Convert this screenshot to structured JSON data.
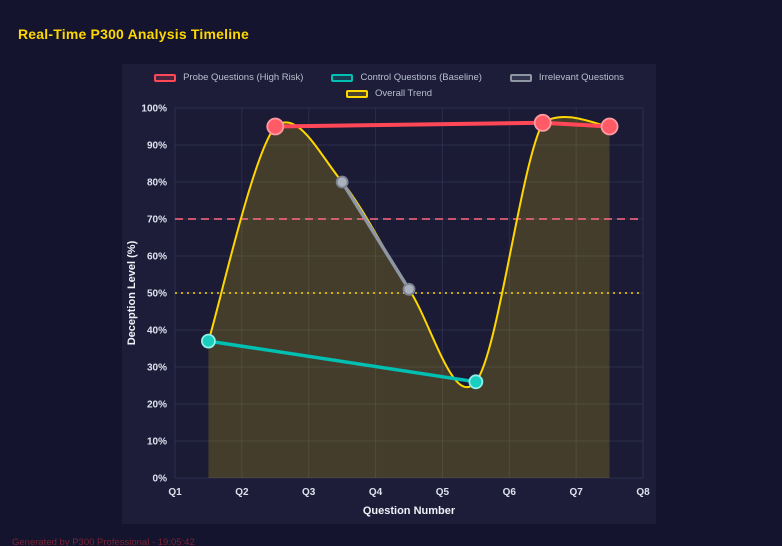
{
  "page": {
    "title": "Real-Time P300 Analysis Timeline",
    "footer": "Generated by P300 Professional - 19:05:42",
    "background": "#14142e",
    "panel_background": "#1d1d3a",
    "title_color": "#ffd700",
    "footer_color": "#7d2230"
  },
  "chart_data": {
    "type": "line",
    "title": "Real-Time P300 Analysis Timeline",
    "xlabel": "Question Number",
    "ylabel": "Deception Level (%)",
    "x_tick_labels": [
      "Q1",
      "Q2",
      "Q3",
      "Q4",
      "Q5",
      "Q6",
      "Q7",
      "Q8"
    ],
    "x_tick_values": [
      1,
      2,
      3,
      4,
      5,
      6,
      7,
      8
    ],
    "xlim": [
      1,
      8
    ],
    "y_tick_labels": [
      "0%",
      "10%",
      "20%",
      "30%",
      "40%",
      "50%",
      "60%",
      "70%",
      "80%",
      "90%",
      "100%"
    ],
    "y_tick_values": [
      0,
      10,
      20,
      30,
      40,
      50,
      60,
      70,
      80,
      90,
      100
    ],
    "ylim": [
      0,
      100
    ],
    "grid": true,
    "grid_color": "rgba(125,135,185,0.16)",
    "legend_position": "top-center",
    "tick_color": "#dfe2ee",
    "axis_title_color": "#f0f1f7",
    "series": [
      {
        "name": "Probe Questions (High Risk)",
        "color": "#ff4757",
        "marker_fill": "#ff5a65",
        "marker_stroke": "#ff9aa2",
        "x": [
          2.5,
          6.5,
          7.5
        ],
        "values": [
          95,
          96,
          95
        ],
        "line_width": 4,
        "marker_size": 8,
        "smooth": false,
        "fill": false
      },
      {
        "name": "Control Questions (Baseline)",
        "color": "#00bfb3",
        "marker_fill": "#19cdbf",
        "marker_stroke": "#8ef0e7",
        "x": [
          1.5,
          5.5
        ],
        "values": [
          37,
          26
        ],
        "line_width": 3.5,
        "marker_size": 6.5,
        "smooth": false,
        "fill": false
      },
      {
        "name": "Irrelevant Questions",
        "color": "#8f96a3",
        "marker_fill": "#aab0bc",
        "marker_stroke": "#7c828e",
        "x": [
          3.5,
          4.5
        ],
        "values": [
          80,
          51
        ],
        "line_width": 3.5,
        "marker_size": 5.5,
        "smooth": false,
        "fill": false
      },
      {
        "name": "Overall Trend",
        "color": "#ffd700",
        "x": [
          1.5,
          2.5,
          3.5,
          4.5,
          5.5,
          6.5,
          7.5
        ],
        "values": [
          37,
          95,
          80,
          51,
          26,
          96,
          95
        ],
        "line_width": 2,
        "smooth": true,
        "fill": true,
        "fill_color": "rgba(255,215,0,0.18)"
      }
    ],
    "reference_lines": [
      {
        "y": 70,
        "color": "#ff6b81",
        "dash": "8 5",
        "width": 1.6
      },
      {
        "y": 50,
        "color": "#ffd700",
        "dash": "2 4",
        "width": 1.4
      }
    ]
  }
}
